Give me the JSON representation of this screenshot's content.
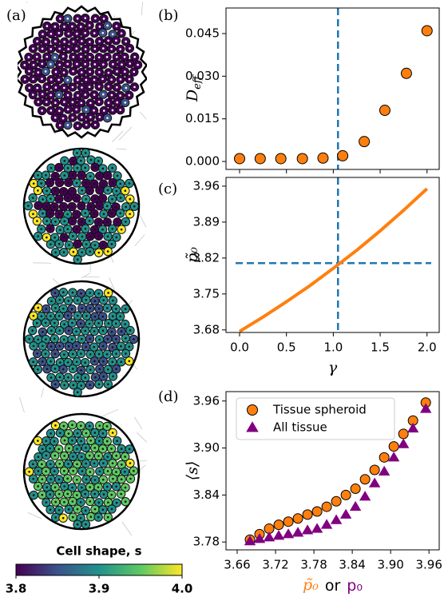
{
  "chart_data": [
    {
      "type": "colorbar",
      "panel_label": "(a)",
      "title": "Cell shape, s",
      "lim": [
        3.8,
        4.0
      ],
      "ticks": [
        3.8,
        3.9,
        {
          "value": 4.0,
          "label": "4.0"
        }
      ],
      "colors": [
        "#440154",
        "#3b528b",
        "#21918c",
        "#5ec962",
        "#fde725"
      ]
    },
    {
      "type": "scatter",
      "panel_label": "(b)",
      "ylabel": "D",
      "ylabel_sub": "eff",
      "x": [
        0.0,
        0.22,
        0.44,
        0.67,
        0.89,
        1.1,
        1.33,
        1.55,
        1.78,
        2.0
      ],
      "values": [
        0.001,
        0.001,
        0.001,
        0.001,
        0.0012,
        0.002,
        0.007,
        0.018,
        0.031,
        0.046
      ],
      "color": "#ff7f0e",
      "xlim": [
        -0.145,
        2.13
      ],
      "xticks": [
        0,
        0.5,
        1,
        1.5,
        2
      ],
      "show_xtick_labels": false,
      "ylim": [
        -0.0028,
        0.054
      ],
      "yticks": [
        {
          "value": 0,
          "label": "0.000"
        },
        {
          "value": 0.015,
          "label": "0.015"
        },
        {
          "value": 0.03,
          "label": "0.030"
        },
        {
          "value": 0.045,
          "label": "0.045"
        }
      ],
      "vline": 1.05,
      "line_color": "#1f77b4"
    },
    {
      "type": "line",
      "panel_label": "(c)",
      "xlabel": "γ",
      "ylabel": "p̃₀",
      "x": [
        0,
        0.25,
        0.5,
        0.75,
        1,
        1.25,
        1.5,
        1.75,
        2
      ],
      "values": [
        3.677,
        3.705,
        3.735,
        3.766,
        3.8,
        3.835,
        3.873,
        3.913,
        3.955
      ],
      "color": "#ff7f0e",
      "xlim": [
        -0.145,
        2.13
      ],
      "show_xtick_labels": true,
      "xticks": [
        {
          "value": 0,
          "label": "0.0"
        },
        {
          "value": 0.5,
          "label": "0.5"
        },
        {
          "value": 1,
          "label": "1.0"
        },
        {
          "value": 1.5,
          "label": "1.5"
        },
        {
          "value": 2,
          "label": "2.0"
        }
      ],
      "ylim": [
        3.675,
        3.977
      ],
      "yticks": [
        3.68,
        3.75,
        3.82,
        3.89,
        3.96
      ],
      "vline": 1.05,
      "hline": 3.81,
      "line_color": "#1f77b4"
    },
    {
      "type": "scatter",
      "panel_label": "(d)",
      "ylabel": "⟨s⟩",
      "xlabel_parts": [
        {
          "text": "p̃₀",
          "color": "#ff7f0e"
        },
        {
          "text": "or",
          "color": "#000000"
        },
        {
          "text": "p₀",
          "color": "#800080"
        }
      ],
      "legend": "upper left",
      "show_xtick_labels": true,
      "xlim": [
        3.6425,
        3.976
      ],
      "xticks": [
        3.66,
        3.72,
        3.78,
        3.84,
        {
          "value": 3.9,
          "label": "3.90"
        },
        3.96
      ],
      "ylim": [
        3.77,
        3.972
      ],
      "yticks": [
        3.78,
        3.84,
        {
          "value": 3.9,
          "label": "3.90"
        },
        3.96
      ],
      "series": [
        {
          "name": "Tissue spheroid",
          "color": "#ff7f0e",
          "marker": "circle",
          "x": [
            3.68,
            3.695,
            3.71,
            3.725,
            3.74,
            3.755,
            3.77,
            3.785,
            3.8,
            3.815,
            3.83,
            3.845,
            3.86,
            3.875,
            3.89,
            3.905,
            3.92,
            3.935,
            3.955
          ],
          "values": [
            3.783,
            3.79,
            3.797,
            3.802,
            3.806,
            3.81,
            3.815,
            3.819,
            3.825,
            3.832,
            3.84,
            3.848,
            3.86,
            3.872,
            3.888,
            3.902,
            3.918,
            3.935,
            3.958
          ]
        },
        {
          "name": "All tissue",
          "color": "#800080",
          "marker": "triangle",
          "x": [
            3.68,
            3.695,
            3.71,
            3.725,
            3.74,
            3.755,
            3.77,
            3.785,
            3.8,
            3.815,
            3.83,
            3.845,
            3.86,
            3.875,
            3.89,
            3.905,
            3.92,
            3.935,
            3.955
          ],
          "values": [
            3.781,
            3.784,
            3.786,
            3.788,
            3.79,
            3.792,
            3.795,
            3.797,
            3.802,
            3.808,
            3.815,
            3.825,
            3.838,
            3.855,
            3.87,
            3.888,
            3.905,
            3.925,
            3.95
          ]
        }
      ]
    }
  ]
}
